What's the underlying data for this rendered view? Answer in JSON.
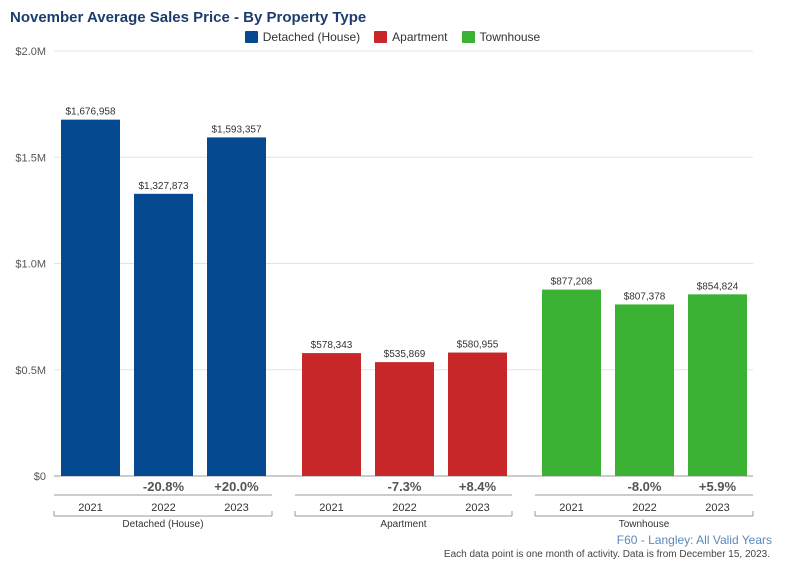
{
  "title": "November Average Sales Price - By Property Type",
  "legend": [
    {
      "label": "Detached (House)",
      "color": "#054a91"
    },
    {
      "label": "Apartment",
      "color": "#c8272a"
    },
    {
      "label": "Townhouse",
      "color": "#3bb233"
    }
  ],
  "footer": {
    "source": "F60 - Langley: All Valid Years",
    "note": "Each data point is one month of activity. Data is from December 15, 2023."
  },
  "chart_data": {
    "type": "bar",
    "ylim": [
      0,
      2000000
    ],
    "y_ticks": [
      {
        "value": 0,
        "label": "$0"
      },
      {
        "value": 500000,
        "label": "$0.5M"
      },
      {
        "value": 1000000,
        "label": "$1.0M"
      },
      {
        "value": 1500000,
        "label": "$1.5M"
      },
      {
        "value": 2000000,
        "label": "$2.0M"
      }
    ],
    "grid": true,
    "legend_position": "top-center",
    "groups": [
      {
        "name": "Detached (House)",
        "color": "#054a91",
        "bars": [
          {
            "year": "2021",
            "value": 1676958,
            "label": "$1,676,958",
            "change": ""
          },
          {
            "year": "2022",
            "value": 1327873,
            "label": "$1,327,873",
            "change": "-20.8%"
          },
          {
            "year": "2023",
            "value": 1593357,
            "label": "$1,593,357",
            "change": "+20.0%"
          }
        ]
      },
      {
        "name": "Apartment",
        "color": "#c8272a",
        "bars": [
          {
            "year": "2021",
            "value": 578343,
            "label": "$578,343",
            "change": ""
          },
          {
            "year": "2022",
            "value": 535869,
            "label": "$535,869",
            "change": "-7.3%"
          },
          {
            "year": "2023",
            "value": 580955,
            "label": "$580,955",
            "change": "+8.4%"
          }
        ]
      },
      {
        "name": "Townhouse",
        "color": "#3bb233",
        "bars": [
          {
            "year": "2021",
            "value": 877208,
            "label": "$877,208",
            "change": ""
          },
          {
            "year": "2022",
            "value": 807378,
            "label": "$807,378",
            "change": "-8.0%"
          },
          {
            "year": "2023",
            "value": 854824,
            "label": "$854,824",
            "change": "+5.9%"
          }
        ]
      }
    ]
  }
}
